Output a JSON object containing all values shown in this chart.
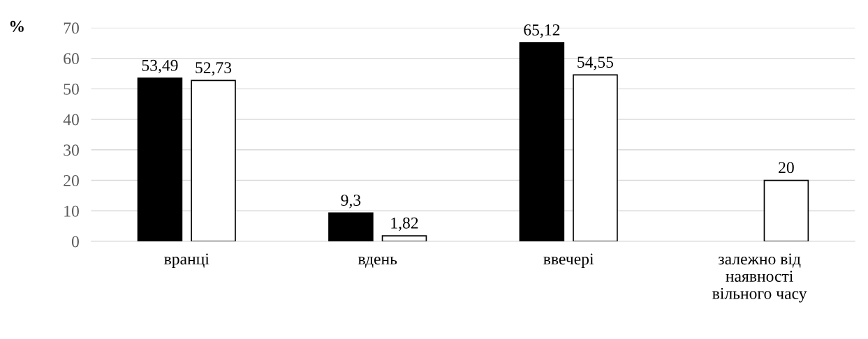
{
  "chart_data": {
    "type": "bar",
    "ylabel": "%",
    "categories": [
      "вранці",
      "вдень",
      "ввечері",
      "залежно від\nнаявності\nвільного часу"
    ],
    "series": [
      {
        "color": "#000000",
        "values": [
          53.49,
          9.3,
          65.12,
          null
        ],
        "value_labels": [
          "53,49",
          "9,3",
          "65,12",
          null
        ]
      },
      {
        "color": "#ffffff",
        "values": [
          52.73,
          1.82,
          54.55,
          20
        ],
        "value_labels": [
          "52,73",
          "1,82",
          "54,55",
          "20"
        ]
      }
    ],
    "ylim": [
      0,
      70
    ],
    "yticks": [
      0,
      10,
      20,
      30,
      40,
      50,
      60,
      70
    ],
    "grid": "y",
    "legend": false
  }
}
